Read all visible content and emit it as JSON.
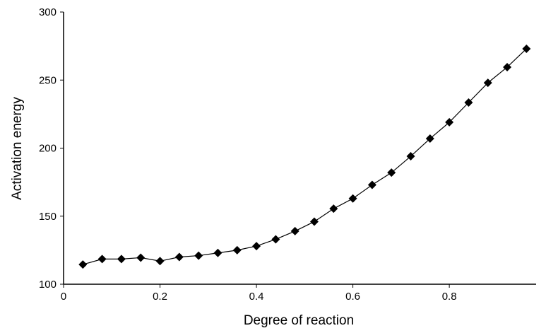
{
  "chart_data": {
    "type": "line",
    "xlabel": "Degree of reaction",
    "ylabel": "Activation energy",
    "x": [
      0.04,
      0.08,
      0.12,
      0.16,
      0.2,
      0.24,
      0.28,
      0.32,
      0.36,
      0.4,
      0.44,
      0.48,
      0.52,
      0.56,
      0.6,
      0.64,
      0.68,
      0.72,
      0.76,
      0.8,
      0.84,
      0.88,
      0.92,
      0.96
    ],
    "series": [
      {
        "color": "#000000",
        "values": [
          114.5,
          118.5,
          118.5,
          119.5,
          117,
          120,
          121,
          123,
          125,
          128,
          133,
          139,
          146,
          155.5,
          163,
          173,
          182,
          194,
          207,
          219,
          233.5,
          248,
          259.5,
          273
        ]
      }
    ],
    "xlim": [
      0,
      0.98
    ],
    "ylim": [
      100,
      300
    ],
    "xticks": [
      0,
      0.2,
      0.4,
      0.6,
      0.8
    ],
    "yticks": [
      100,
      150,
      200,
      250,
      300
    ]
  }
}
